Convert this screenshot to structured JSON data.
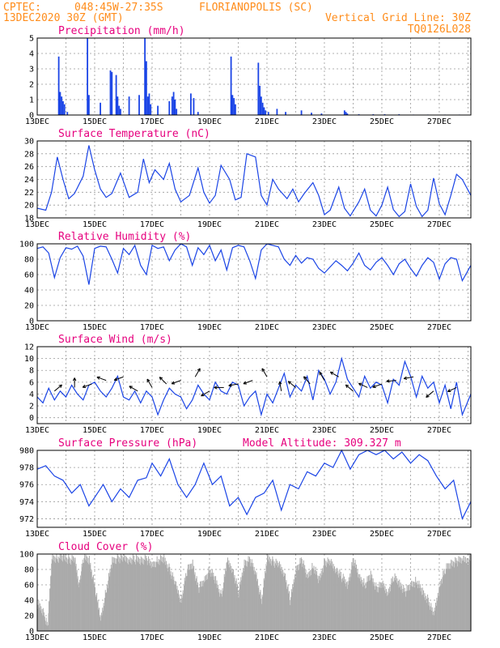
{
  "header": {
    "source": "CPTEC:",
    "location_code": "048:45W-27:35S",
    "city": "FLORIANOPOLIS (SC)",
    "run": "13DEC2020 30Z (GMT)",
    "grid_note": "Vertical Grid Line: 30Z",
    "model": "TQ0126L028"
  },
  "colors": {
    "header": "#ff8c1a",
    "title": "#e6007e",
    "series": "#1a44e6",
    "cloud": "#aaaaaa"
  },
  "x_labels": [
    "13DEC",
    "15DEC",
    "17DEC",
    "19DEC",
    "21DEC",
    "23DEC",
    "25DEC",
    "27DEC"
  ],
  "x_range_days": [
    13,
    28.1
  ],
  "chart_data": [
    {
      "id": "precip",
      "type": "bar",
      "title": "Precipitation (mm/h)",
      "ylim": [
        0,
        5
      ],
      "yticks": [
        "0",
        "1",
        "2",
        "3",
        "4",
        "5"
      ],
      "x": [
        13.75,
        13.8,
        13.85,
        13.9,
        13.95,
        14.05,
        14.75,
        14.8,
        15.2,
        15.55,
        15.6,
        15.75,
        15.8,
        15.85,
        15.9,
        16.2,
        16.55,
        16.75,
        16.8,
        16.85,
        16.9,
        16.95,
        17.2,
        17.6,
        17.7,
        17.75,
        17.8,
        17.85,
        18.35,
        18.45,
        18.6,
        19.75,
        19.8,
        19.85,
        19.9,
        20.7,
        20.75,
        20.8,
        20.85,
        20.9,
        20.95,
        21.05,
        21.35,
        21.65,
        22.2,
        22.55,
        22.9,
        23.7,
        23.75,
        23.8,
        24.2,
        24.7,
        25.1,
        25.6,
        26.1,
        26.6,
        27.2,
        27.7
      ],
      "values": [
        3.8,
        1.5,
        1.2,
        0.9,
        0.7,
        0.2,
        5.0,
        1.3,
        0.8,
        2.9,
        2.8,
        2.6,
        1.2,
        0.6,
        0.4,
        1.2,
        1.3,
        5.0,
        3.5,
        1.2,
        1.4,
        0.7,
        0.6,
        0.9,
        1.2,
        1.5,
        1.0,
        0.4,
        1.4,
        1.1,
        0.2,
        3.8,
        1.3,
        1.1,
        0.7,
        3.4,
        1.9,
        1.2,
        0.8,
        0.5,
        0.3,
        0.2,
        0.4,
        0.2,
        0.3,
        0.15,
        0.1,
        0.3,
        0.2,
        0.1,
        0.05,
        0.05,
        0.05,
        0.05,
        0.03,
        0.03,
        0.03,
        0.03
      ]
    },
    {
      "id": "temp",
      "type": "line",
      "title": "Surface Temperature (nC)",
      "ylim": [
        18,
        30
      ],
      "yticks": [
        "18",
        "20",
        "22",
        "24",
        "26",
        "28",
        "30"
      ],
      "x": [
        13.0,
        13.3,
        13.5,
        13.7,
        13.9,
        14.1,
        14.3,
        14.6,
        14.8,
        15.0,
        15.2,
        15.4,
        15.6,
        15.9,
        16.2,
        16.5,
        16.7,
        16.9,
        17.1,
        17.4,
        17.6,
        17.8,
        18.0,
        18.3,
        18.6,
        18.8,
        19.0,
        19.2,
        19.4,
        19.7,
        19.9,
        20.1,
        20.3,
        20.6,
        20.8,
        21.0,
        21.2,
        21.4,
        21.7,
        21.9,
        22.1,
        22.3,
        22.6,
        22.8,
        23.0,
        23.2,
        23.5,
        23.7,
        23.9,
        24.2,
        24.4,
        24.6,
        24.8,
        25.0,
        25.2,
        25.4,
        25.6,
        25.8,
        26.0,
        26.2,
        26.4,
        26.6,
        26.8,
        27.0,
        27.2,
        27.4,
        27.6,
        27.8,
        28.1
      ],
      "values": [
        19.5,
        19.2,
        22.0,
        27.5,
        24.0,
        21.0,
        21.8,
        24.5,
        29.3,
        25.5,
        22.5,
        21.2,
        21.8,
        25.0,
        21.2,
        22.0,
        27.2,
        23.5,
        25.5,
        24.0,
        26.5,
        22.5,
        20.5,
        21.5,
        25.8,
        22.0,
        20.3,
        21.5,
        26.2,
        24.0,
        20.8,
        21.2,
        28.0,
        27.5,
        21.5,
        20.0,
        24.0,
        22.5,
        21.0,
        22.5,
        20.5,
        21.8,
        23.5,
        21.5,
        18.5,
        19.2,
        22.8,
        19.5,
        18.3,
        20.5,
        22.5,
        19.2,
        18.3,
        20.0,
        22.8,
        19.3,
        18.2,
        19.0,
        23.3,
        19.8,
        18.2,
        19.2,
        24.2,
        20.2,
        18.5,
        21.5,
        24.8,
        24.0,
        21.5
      ]
    },
    {
      "id": "rh",
      "type": "line",
      "title": "Relative Humidity (%)",
      "ylim": [
        0,
        100
      ],
      "yticks": [
        "0",
        "20",
        "40",
        "60",
        "80",
        "100"
      ],
      "x": [
        13.0,
        13.2,
        13.4,
        13.6,
        13.8,
        14.0,
        14.2,
        14.4,
        14.6,
        14.8,
        15.0,
        15.2,
        15.4,
        15.6,
        15.8,
        16.0,
        16.2,
        16.4,
        16.6,
        16.8,
        17.0,
        17.2,
        17.4,
        17.6,
        17.8,
        18.0,
        18.2,
        18.4,
        18.6,
        18.8,
        19.0,
        19.2,
        19.4,
        19.6,
        19.8,
        20.0,
        20.2,
        20.4,
        20.6,
        20.8,
        21.0,
        21.2,
        21.4,
        21.6,
        21.8,
        22.0,
        22.2,
        22.4,
        22.6,
        22.8,
        23.0,
        23.2,
        23.4,
        23.6,
        23.8,
        24.0,
        24.2,
        24.4,
        24.6,
        24.8,
        25.0,
        25.2,
        25.4,
        25.6,
        25.8,
        26.0,
        26.2,
        26.4,
        26.6,
        26.8,
        27.0,
        27.2,
        27.4,
        27.6,
        27.8,
        28.1
      ],
      "values": [
        94,
        96,
        88,
        56,
        82,
        95,
        93,
        97,
        84,
        47,
        94,
        97,
        96,
        80,
        62,
        94,
        86,
        98,
        72,
        60,
        98,
        94,
        96,
        78,
        92,
        100,
        96,
        72,
        95,
        86,
        98,
        78,
        92,
        66,
        95,
        98,
        96,
        78,
        55,
        92,
        100,
        98,
        96,
        80,
        72,
        85,
        75,
        82,
        80,
        68,
        62,
        70,
        78,
        72,
        65,
        75,
        88,
        72,
        66,
        76,
        82,
        72,
        60,
        74,
        80,
        68,
        58,
        72,
        82,
        76,
        54,
        74,
        82,
        80,
        52,
        72
      ]
    },
    {
      "id": "wind",
      "type": "line",
      "title": "Surface Wind (m/s)",
      "ylim": [
        -1,
        12
      ],
      "yticks": [
        "0",
        "2",
        "4",
        "6",
        "8",
        "10",
        "12"
      ],
      "x": [
        13.0,
        13.2,
        13.4,
        13.6,
        13.8,
        14.0,
        14.2,
        14.4,
        14.6,
        14.8,
        15.0,
        15.2,
        15.4,
        15.6,
        15.8,
        16.0,
        16.2,
        16.4,
        16.6,
        16.8,
        17.0,
        17.2,
        17.4,
        17.6,
        17.8,
        18.0,
        18.2,
        18.4,
        18.6,
        18.8,
        19.0,
        19.2,
        19.4,
        19.6,
        19.8,
        20.0,
        20.2,
        20.4,
        20.6,
        20.8,
        21.0,
        21.2,
        21.4,
        21.6,
        21.8,
        22.0,
        22.2,
        22.4,
        22.6,
        22.8,
        23.0,
        23.2,
        23.4,
        23.6,
        23.8,
        24.0,
        24.2,
        24.4,
        24.6,
        24.8,
        25.0,
        25.2,
        25.4,
        25.6,
        25.8,
        26.0,
        26.2,
        26.4,
        26.6,
        26.8,
        27.0,
        27.2,
        27.4,
        27.6,
        27.8,
        28.1
      ],
      "values": [
        3.5,
        2.5,
        5.0,
        3.0,
        4.5,
        3.5,
        5.5,
        4.0,
        3.0,
        5.5,
        6.0,
        4.5,
        3.5,
        5.0,
        7.0,
        3.5,
        3.0,
        4.5,
        2.5,
        4.5,
        3.5,
        0.5,
        3.0,
        5.0,
        4.0,
        3.5,
        1.5,
        3.0,
        5.5,
        4.0,
        3.0,
        6.0,
        4.5,
        4.0,
        6.0,
        5.5,
        2.0,
        3.5,
        4.5,
        0.5,
        4.0,
        2.5,
        5.0,
        7.5,
        3.5,
        5.5,
        4.5,
        7.0,
        3.0,
        8.0,
        6.5,
        4.0,
        6.0,
        10.0,
        6.5,
        5.0,
        3.5,
        7.0,
        5.0,
        6.0,
        5.5,
        2.5,
        6.5,
        5.5,
        9.5,
        7.0,
        3.5,
        7.0,
        5.0,
        6.0,
        2.5,
        5.5,
        1.5,
        6.0,
        0.5,
        4.0
      ]
    },
    {
      "id": "pressure",
      "type": "line",
      "title": "Surface Pressure (hPa)",
      "note": "Model Altitude: 309.327 m",
      "ylim": [
        971,
        980
      ],
      "yticks": [
        "972",
        "974",
        "976",
        "978",
        "980"
      ],
      "x": [
        13.0,
        13.3,
        13.6,
        13.9,
        14.2,
        14.5,
        14.8,
        15.0,
        15.3,
        15.6,
        15.9,
        16.2,
        16.5,
        16.8,
        17.0,
        17.3,
        17.6,
        17.9,
        18.2,
        18.5,
        18.8,
        19.1,
        19.4,
        19.7,
        20.0,
        20.3,
        20.6,
        20.9,
        21.2,
        21.5,
        21.8,
        22.1,
        22.4,
        22.7,
        23.0,
        23.3,
        23.6,
        23.9,
        24.2,
        24.5,
        24.8,
        25.1,
        25.4,
        25.7,
        26.0,
        26.3,
        26.6,
        26.9,
        27.2,
        27.5,
        27.8,
        28.1
      ],
      "values": [
        977.8,
        978.2,
        977.0,
        976.5,
        975.0,
        976.0,
        973.5,
        974.5,
        976.0,
        974.0,
        975.5,
        974.5,
        976.5,
        976.8,
        978.5,
        977.0,
        979.0,
        976.0,
        974.5,
        976.0,
        978.5,
        976.0,
        977.0,
        973.5,
        974.5,
        972.5,
        974.5,
        975.0,
        976.5,
        973.0,
        976.0,
        975.5,
        977.5,
        977.0,
        978.5,
        978.0,
        980.0,
        977.8,
        979.5,
        980.0,
        979.5,
        980.0,
        979.0,
        979.8,
        978.5,
        979.5,
        978.8,
        977.0,
        975.5,
        976.5,
        972.0,
        974.0
      ]
    },
    {
      "id": "cloud",
      "type": "area",
      "title": "Cloud Cover (%)",
      "ylim": [
        0,
        100
      ],
      "yticks": [
        "0",
        "20",
        "40",
        "60",
        "80",
        "100"
      ],
      "x": [
        13.0,
        13.2,
        13.35,
        13.5,
        13.7,
        13.9,
        14.1,
        14.3,
        14.45,
        14.6,
        14.8,
        15.0,
        15.2,
        15.4,
        15.6,
        15.8,
        16.0,
        16.2,
        16.4,
        16.6,
        16.8,
        17.0,
        17.2,
        17.4,
        17.6,
        17.8,
        18.0,
        18.2,
        18.4,
        18.6,
        18.8,
        19.0,
        19.2,
        19.4,
        19.6,
        19.8,
        20.0,
        20.2,
        20.4,
        20.6,
        20.8,
        21.0,
        21.2,
        21.4,
        21.6,
        21.8,
        22.0,
        22.2,
        22.4,
        22.6,
        22.8,
        23.0,
        23.2,
        23.4,
        23.6,
        23.8,
        24.0,
        24.2,
        24.4,
        24.6,
        24.8,
        25.0,
        25.2,
        25.4,
        25.6,
        25.8,
        26.0,
        26.2,
        26.4,
        26.6,
        26.8,
        27.0,
        27.2,
        27.4,
        27.6,
        27.8,
        28.1
      ],
      "values": [
        35,
        25,
        5,
        95,
        95,
        95,
        93,
        92,
        60,
        95,
        93,
        55,
        15,
        55,
        90,
        95,
        93,
        93,
        93,
        92,
        93,
        85,
        92,
        93,
        80,
        60,
        40,
        78,
        88,
        55,
        65,
        80,
        65,
        45,
        90,
        80,
        50,
        88,
        92,
        75,
        40,
        95,
        90,
        85,
        75,
        40,
        80,
        92,
        70,
        85,
        65,
        90,
        88,
        80,
        70,
        60,
        93,
        70,
        60,
        72,
        55,
        60,
        50,
        70,
        62,
        50,
        60,
        65,
        50,
        40,
        20,
        60,
        80,
        88,
        90,
        93,
        93
      ]
    }
  ]
}
